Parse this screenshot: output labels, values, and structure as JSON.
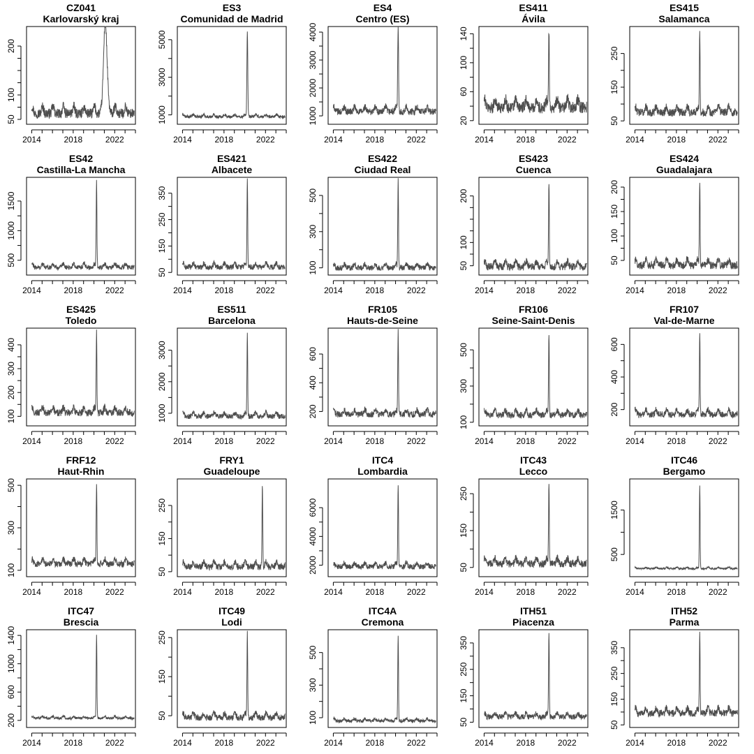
{
  "chart_data": [
    {
      "type": "line",
      "title": "CZ041",
      "subtitle": "Karlovarský kraj",
      "xticks": [
        "2014",
        "2018",
        "2022"
      ],
      "yticks": [
        "50",
        "100",
        "200"
      ],
      "ylim": [
        40,
        240
      ],
      "baseline": 62,
      "noise": 10,
      "spike": {
        "x": 2021.1,
        "value": 235,
        "width": 0.25
      }
    },
    {
      "type": "line",
      "title": "ES3",
      "subtitle": "Comunidad de Madrid",
      "xticks": [
        "2014",
        "2018",
        "2022"
      ],
      "yticks": [
        "1000",
        "3000",
        "5000"
      ],
      "ylim": [
        500,
        5700
      ],
      "baseline": 900,
      "noise": 80,
      "spike": {
        "x": 2020.25,
        "value": 5400,
        "width": 0.06
      }
    },
    {
      "type": "line",
      "title": "ES4",
      "subtitle": "Centro (ES)",
      "xticks": [
        "2014",
        "2018",
        "2022"
      ],
      "yticks": [
        "1000",
        "2000",
        "3000",
        "4000"
      ],
      "ylim": [
        700,
        4200
      ],
      "baseline": 1150,
      "noise": 120,
      "spike": {
        "x": 2020.25,
        "value": 4100,
        "width": 0.06
      }
    },
    {
      "type": "line",
      "title": "ES411",
      "subtitle": "Ávila",
      "xticks": [
        "2014",
        "2018",
        "2022"
      ],
      "yticks": [
        "20",
        "60",
        "100",
        "140"
      ],
      "ylim": [
        15,
        150
      ],
      "baseline": 38,
      "noise": 8,
      "spike": {
        "x": 2020.25,
        "value": 145,
        "width": 0.05
      }
    },
    {
      "type": "line",
      "title": "ES415",
      "subtitle": "Salamanca",
      "xticks": [
        "2014",
        "2018",
        "2022"
      ],
      "yticks": [
        "50",
        "150",
        "250"
      ],
      "ylim": [
        40,
        330
      ],
      "baseline": 75,
      "noise": 12,
      "spike": {
        "x": 2020.25,
        "value": 320,
        "width": 0.05
      }
    },
    {
      "type": "line",
      "title": "ES42",
      "subtitle": "Castilla-La Mancha",
      "xticks": [
        "2014",
        "2018",
        "2022"
      ],
      "yticks": [
        "500",
        "1000",
        "1500"
      ],
      "ylim": [
        250,
        1900
      ],
      "baseline": 380,
      "noise": 40,
      "spike": {
        "x": 2020.25,
        "value": 1850,
        "width": 0.05
      }
    },
    {
      "type": "line",
      "title": "ES421",
      "subtitle": "Albacete",
      "xticks": [
        "2014",
        "2018",
        "2022"
      ],
      "yticks": [
        "50",
        "150",
        "250",
        "350"
      ],
      "ylim": [
        40,
        410
      ],
      "baseline": 70,
      "noise": 10,
      "spike": {
        "x": 2020.25,
        "value": 400,
        "width": 0.05
      }
    },
    {
      "type": "line",
      "title": "ES422",
      "subtitle": "Ciudad Real",
      "xticks": [
        "2014",
        "2018",
        "2022"
      ],
      "yticks": [
        "100",
        "300",
        "500"
      ],
      "ylim": [
        60,
        600
      ],
      "baseline": 100,
      "noise": 15,
      "spike": {
        "x": 2020.25,
        "value": 580,
        "width": 0.05
      }
    },
    {
      "type": "line",
      "title": "ES423",
      "subtitle": "Cuenca",
      "xticks": [
        "2014",
        "2018",
        "2022"
      ],
      "yticks": [
        "50",
        "100",
        "200"
      ],
      "ylim": [
        30,
        240
      ],
      "baseline": 48,
      "noise": 8,
      "spike": {
        "x": 2020.25,
        "value": 230,
        "width": 0.05
      }
    },
    {
      "type": "line",
      "title": "ES424",
      "subtitle": "Guadalajara",
      "xticks": [
        "2014",
        "2018",
        "2022"
      ],
      "yticks": [
        "50",
        "100",
        "150",
        "200"
      ],
      "ylim": [
        20,
        220
      ],
      "baseline": 40,
      "noise": 8,
      "spike": {
        "x": 2020.25,
        "value": 210,
        "width": 0.05
      }
    },
    {
      "type": "line",
      "title": "ES425",
      "subtitle": "Toledo",
      "xticks": [
        "2014",
        "2018",
        "2022"
      ],
      "yticks": [
        "100",
        "200",
        "300",
        "400"
      ],
      "ylim": [
        60,
        470
      ],
      "baseline": 115,
      "noise": 15,
      "spike": {
        "x": 2020.25,
        "value": 460,
        "width": 0.05
      }
    },
    {
      "type": "line",
      "title": "ES511",
      "subtitle": "Barcelona",
      "xticks": [
        "2014",
        "2018",
        "2022"
      ],
      "yticks": [
        "1000",
        "2000",
        "3000"
      ],
      "ylim": [
        600,
        3700
      ],
      "baseline": 900,
      "noise": 80,
      "spike": {
        "x": 2020.25,
        "value": 3500,
        "width": 0.05
      }
    },
    {
      "type": "line",
      "title": "FR105",
      "subtitle": "Hauts-de-Seine",
      "xticks": [
        "2014",
        "2018",
        "2022"
      ],
      "yticks": [
        "200",
        "400",
        "600"
      ],
      "ylim": [
        100,
        780
      ],
      "baseline": 180,
      "noise": 22,
      "spike": {
        "x": 2020.25,
        "value": 750,
        "width": 0.05
      }
    },
    {
      "type": "line",
      "title": "FR106",
      "subtitle": "Seine-Saint-Denis",
      "xticks": [
        "2014",
        "2018",
        "2022"
      ],
      "yticks": [
        "100",
        "300",
        "500"
      ],
      "ylim": [
        80,
        620
      ],
      "baseline": 140,
      "noise": 18,
      "spike": {
        "x": 2020.25,
        "value": 590,
        "width": 0.05
      }
    },
    {
      "type": "line",
      "title": "FR107",
      "subtitle": "Val-de-Marne",
      "xticks": [
        "2014",
        "2018",
        "2022"
      ],
      "yticks": [
        "200",
        "400",
        "600"
      ],
      "ylim": [
        100,
        700
      ],
      "baseline": 170,
      "noise": 20,
      "spike": {
        "x": 2020.25,
        "value": 670,
        "width": 0.05
      }
    },
    {
      "type": "line",
      "title": "FRF12",
      "subtitle": "Haut-Rhin",
      "xticks": [
        "2014",
        "2018",
        "2022"
      ],
      "yticks": [
        "100",
        "300",
        "500"
      ],
      "ylim": [
        70,
        530
      ],
      "baseline": 130,
      "noise": 15,
      "spike": {
        "x": 2020.25,
        "value": 500,
        "width": 0.05
      }
    },
    {
      "type": "line",
      "title": "FRY1",
      "subtitle": "Guadeloupe",
      "xticks": [
        "2014",
        "2018",
        "2022"
      ],
      "yticks": [
        "50",
        "150",
        "250"
      ],
      "ylim": [
        35,
        330
      ],
      "baseline": 65,
      "noise": 10,
      "spike": {
        "x": 2021.7,
        "value": 310,
        "width": 0.05
      }
    },
    {
      "type": "line",
      "title": "ITC4",
      "subtitle": "Lombardia",
      "xticks": [
        "2014",
        "2018",
        "2022"
      ],
      "yticks": [
        "2000",
        "4000",
        "6000"
      ],
      "ylim": [
        1200,
        8000
      ],
      "baseline": 1900,
      "noise": 180,
      "spike": {
        "x": 2020.25,
        "value": 7700,
        "width": 0.05
      }
    },
    {
      "type": "line",
      "title": "ITC43",
      "subtitle": "Lecco",
      "xticks": [
        "2014",
        "2018",
        "2022"
      ],
      "yticks": [
        "50",
        "150",
        "250"
      ],
      "ylim": [
        25,
        290
      ],
      "baseline": 60,
      "noise": 10,
      "spike": {
        "x": 2020.25,
        "value": 280,
        "width": 0.05
      }
    },
    {
      "type": "line",
      "title": "ITC46",
      "subtitle": "Bergamo",
      "xticks": [
        "2014",
        "2018",
        "2022"
      ],
      "yticks": [
        "500",
        "1500"
      ],
      "ylim": [
        0,
        2200
      ],
      "baseline": 180,
      "noise": 20,
      "spike": {
        "x": 2020.25,
        "value": 2050,
        "width": 0.05
      }
    },
    {
      "type": "line",
      "title": "ITC47",
      "subtitle": "Brescia",
      "xticks": [
        "2014",
        "2018",
        "2022"
      ],
      "yticks": [
        "200",
        "600",
        "1000",
        "1400"
      ],
      "ylim": [
        100,
        1480
      ],
      "baseline": 230,
      "noise": 18,
      "spike": {
        "x": 2020.25,
        "value": 1400,
        "width": 0.05
      }
    },
    {
      "type": "line",
      "title": "ITC49",
      "subtitle": "Lodi",
      "xticks": [
        "2014",
        "2018",
        "2022"
      ],
      "yticks": [
        "50",
        "150",
        "250"
      ],
      "ylim": [
        20,
        270
      ],
      "baseline": 45,
      "noise": 8,
      "spike": {
        "x": 2020.25,
        "value": 260,
        "width": 0.05
      }
    },
    {
      "type": "line",
      "title": "ITC4A",
      "subtitle": "Cremona",
      "xticks": [
        "2014",
        "2018",
        "2022"
      ],
      "yticks": [
        "100",
        "300",
        "500"
      ],
      "ylim": [
        40,
        640
      ],
      "baseline": 80,
      "noise": 10,
      "spike": {
        "x": 2020.25,
        "value": 610,
        "width": 0.05
      }
    },
    {
      "type": "line",
      "title": "ITH51",
      "subtitle": "Piacenza",
      "xticks": [
        "2014",
        "2018",
        "2022"
      ],
      "yticks": [
        "50",
        "150",
        "250",
        "350"
      ],
      "ylim": [
        30,
        400
      ],
      "baseline": 70,
      "noise": 10,
      "spike": {
        "x": 2020.25,
        "value": 390,
        "width": 0.05
      }
    },
    {
      "type": "line",
      "title": "ITH52",
      "subtitle": "Parma",
      "xticks": [
        "2014",
        "2018",
        "2022"
      ],
      "yticks": [
        "50",
        "150",
        "250",
        "350"
      ],
      "ylim": [
        40,
        420
      ],
      "baseline": 95,
      "noise": 14,
      "spike": {
        "x": 2020.25,
        "value": 410,
        "width": 0.05
      }
    }
  ]
}
